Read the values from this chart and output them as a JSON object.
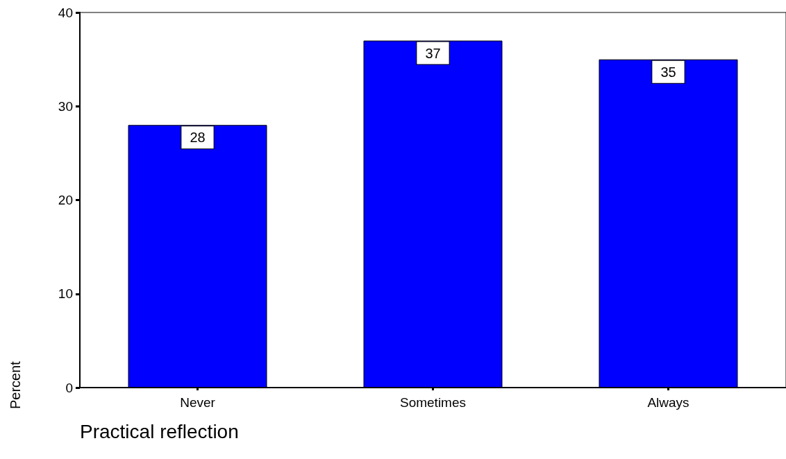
{
  "chart_data": {
    "type": "bar",
    "xlabel": "Practical reflection",
    "ylabel": "Percent",
    "categories": [
      "Never",
      "Sometimes",
      "Always"
    ],
    "values": [
      28,
      37,
      35
    ],
    "color": "#0000ff",
    "ylim": [
      0,
      40
    ],
    "yticks": [
      0,
      10,
      20,
      30,
      40
    ],
    "grid": false,
    "data_labels": true
  }
}
